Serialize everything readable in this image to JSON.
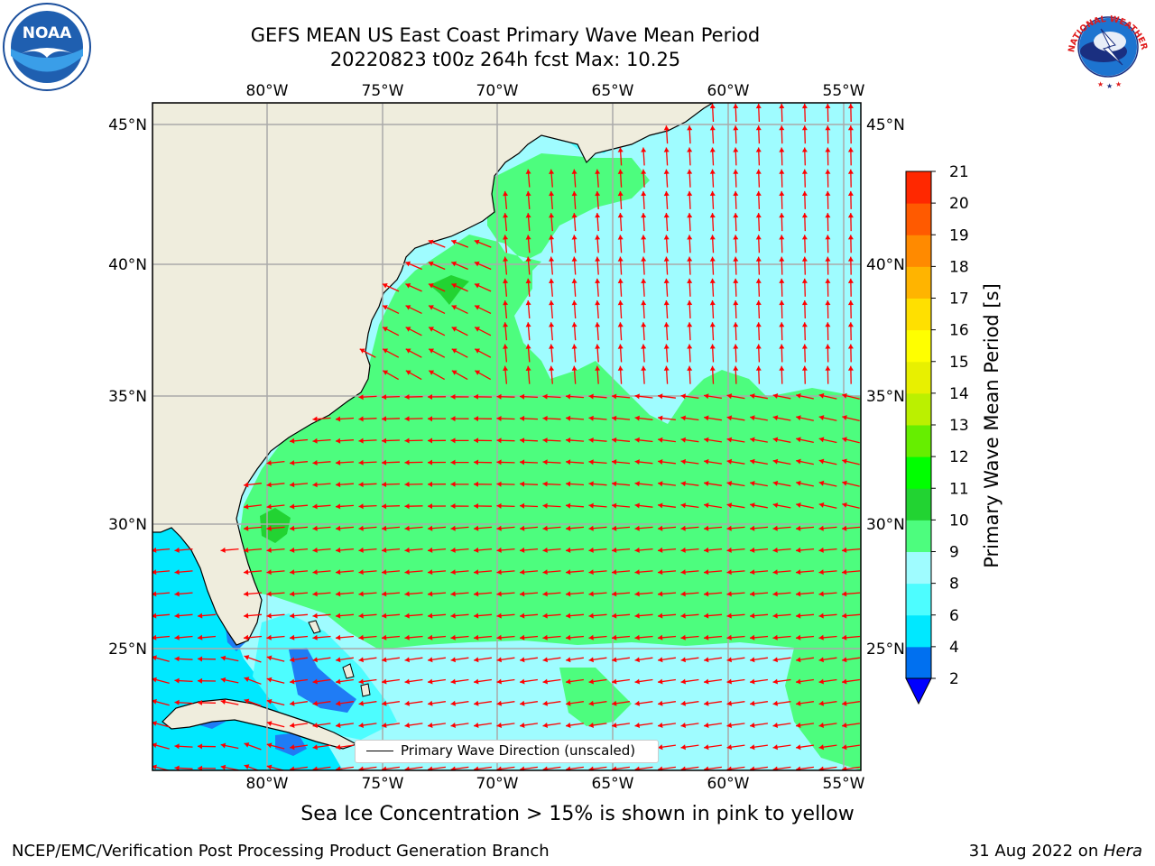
{
  "title": {
    "line1": "GEFS MEAN US East Coast Primary Wave Mean Period",
    "line2": "20220823 t00z 264h fcst   Max: 10.25"
  },
  "logos": {
    "left": {
      "name": "noaa-logo",
      "text": "NOAA"
    },
    "right": {
      "name": "nws-logo",
      "text": "NATIONAL WEATHER SERVICE"
    }
  },
  "map": {
    "lon_labels": [
      "80°W",
      "75°W",
      "70°W",
      "65°W",
      "60°W",
      "55°W"
    ],
    "lat_labels": [
      "45°N",
      "40°N",
      "35°N",
      "30°N",
      "25°N"
    ],
    "extent": {
      "lon": [
        -85,
        -54.3
      ],
      "lat": [
        20.5,
        46.2
      ]
    },
    "grid": true,
    "land_color": "#efeddd",
    "regions": [
      {
        "name": "light-cyan-period-8-9",
        "color": "#9ffcff"
      },
      {
        "name": "green-period-9-10",
        "color": "#4dfd7e"
      },
      {
        "name": "dark-green-period-10-11",
        "color": "#22d332"
      },
      {
        "name": "cyan-period-6-8",
        "color": "#4dfdff"
      },
      {
        "name": "bright-cyan-period-4-6",
        "color": "#00e8ff"
      },
      {
        "name": "blue-period-2-4",
        "color": "#1f7cf5"
      }
    ],
    "arrow_color": "#ff0000"
  },
  "legend": {
    "label": "Primary Wave Direction (unscaled)"
  },
  "colorbar": {
    "label": "Primary Wave Mean Period [s]",
    "ticks": [
      "2",
      "4",
      "6",
      "8",
      "9",
      "10",
      "11",
      "12",
      "13",
      "14",
      "15",
      "16",
      "17",
      "18",
      "19",
      "20",
      "21"
    ],
    "colors": [
      "#0070f0",
      "#00e8ff",
      "#4dfdff",
      "#9ffcff",
      "#4dfd7e",
      "#22d332",
      "#00ff00",
      "#66ee00",
      "#bbf000",
      "#e8f000",
      "#ffff00",
      "#ffe000",
      "#ffb400",
      "#ff8a00",
      "#ff5a00",
      "#ff2800",
      "#ff0000"
    ],
    "under_color": "#0000ff"
  },
  "subtitle": "Sea Ice Concentration > 15% is shown in pink to yellow",
  "footer": {
    "left": "NCEP/EMC/Verification Post Processing Product Generation Branch",
    "right_date": "31 Aug 2022 on ",
    "right_host": "Hera"
  }
}
